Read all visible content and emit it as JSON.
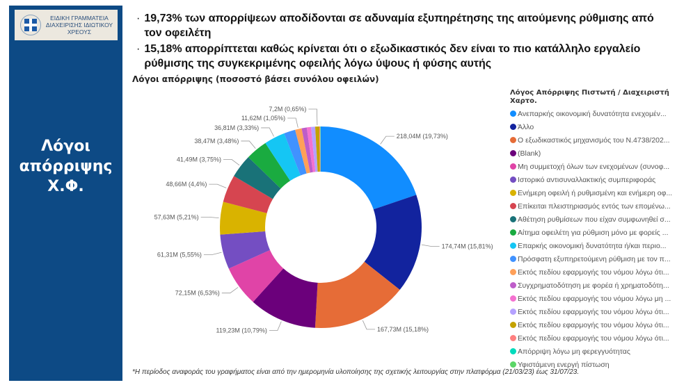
{
  "sidebar": {
    "logo_text": [
      "ΕΙΔΙΚΗ ΓΡΑΜΜΑΤΕΙΑ",
      "ΔΙΑΧΕΙΡΙΣΗΣ ΙΔΙΩΤΙΚΟΥ",
      "ΧΡΕΟΥΣ"
    ],
    "title": [
      "Λόγοι",
      "απόρριψης",
      "Χ.Φ."
    ],
    "background": "#0d4a85"
  },
  "bullets": [
    "19,73% των απορρίψεων αποδίδονται σε αδυναμία εξυπηρέτησης της αιτούμενης ρύθμισης από τον οφειλέτη",
    "15,18% απορρίπτεται καθώς κρίνεται ότι ο εξωδικαστικός δεν είναι το πιο κατάλληλο εργαλείο ρύθμισης της συγκεκριμένης οφειλής λόγω ύψους ή φύσης αυτής"
  ],
  "footnote": "*Η περίοδος αναφοράς του γραφήματος είναι από την ημερομηνία υλοποίησης της σχετικής λειτουργίας στην πλατφόρμα (21/03/23) έως 31/07/23.",
  "chart_data": {
    "type": "pie",
    "variant": "donut",
    "title": "Λόγοι απόρριψης (ποσοστό βάσει συνόλου οφειλών)",
    "legend_title": "Λόγος Απόρριψης Πιστωτή / Διαχειριστή Χαρτο.",
    "legend_position": "right",
    "slices": [
      {
        "name": "Ανεπαρκής οικονομική δυνατότητα ενεχομέν...",
        "value": 218.04,
        "label": "218,04M (19,73%)",
        "color": "#118dff"
      },
      {
        "name": "Άλλο",
        "value": 174.74,
        "label": "174,74M (15,81%)",
        "color": "#12239e"
      },
      {
        "name": "Ο εξωδικαστικός μηχανισμός του Ν.4738/202...",
        "value": 167.73,
        "label": "167,73M (15,18%)",
        "color": "#e66c37"
      },
      {
        "name": "(Blank)",
        "value": 119.23,
        "label": "119,23M (10,79%)",
        "color": "#6b007b"
      },
      {
        "name": "Μη συμμετοχή όλων των ενεχομένων (συνοφ...",
        "value": 72.15,
        "label": "72,15M (6,53%)",
        "color": "#e044a7"
      },
      {
        "name": "Ιστορικό αντισυναλλακτικής συμπεριφοράς",
        "value": 61.31,
        "label": "61,31M (5,55%)",
        "color": "#744ec2"
      },
      {
        "name": "Ενήμερη οφειλή ή ρυθμισμένη και ενήμερη οφ...",
        "value": 57.63,
        "label": "57,63M (5,21%)",
        "color": "#d9b300"
      },
      {
        "name": "Επίκειται πλειστηριασμός εντός των επομένω...",
        "value": 48.66,
        "label": "48,66M (4,4%)",
        "color": "#d64550"
      },
      {
        "name": "Αθέτηση ρυθμίσεων που είχαν συμφωνηθεί σ...",
        "value": 41.49,
        "label": "41,49M (3,75%)",
        "color": "#197278"
      },
      {
        "name": "Αίτημα οφειλέτη για ρύθμιση μόνο με φορείς ...",
        "value": 38.47,
        "label": "38,47M (3,48%)",
        "color": "#1aab40"
      },
      {
        "name": "Επαρκής οικονομική δυνατότητα ή/και περιο...",
        "value": 36.81,
        "label": "36,81M (3,33%)",
        "color": "#15c6f4"
      },
      {
        "name": "Πρόσφατη εξυπηρετούμενη ρύθμιση με τον π...",
        "value": 20,
        "color": "#4092ff"
      },
      {
        "name": "Εκτός πεδίου εφαρμογής του νόμου λόγω ότι...",
        "value": 11.62,
        "label": "11,62M (1,05%)",
        "color": "#ffa058"
      },
      {
        "name": "Συγχρηματοδότηση με φορέα ή χρηματοδότη...",
        "value": 9,
        "color": "#be5dc9"
      },
      {
        "name": "Εκτός πεδίου εφαρμογής του νόμου λόγω μη ...",
        "value": 7.5,
        "color": "#f472d0"
      },
      {
        "name": "Εκτός πεδίου εφαρμογής του νόμου λόγω ότι...",
        "value": 7.3,
        "color": "#b5a1ff"
      },
      {
        "name": "Εκτός πεδίου εφαρμογής του νόμου λόγω ότι...",
        "value": 7.2,
        "label": "7,2M (0,65%)",
        "color": "#c4a200"
      },
      {
        "name": "Εκτός πεδίου εφαρμογής του νόμου λόγω ότι...",
        "value": 1.5,
        "color": "#ff8080"
      },
      {
        "name": "Απόρριψη λόγω μη φερεγγυότητας",
        "value": 0.6,
        "color": "#00dbbc"
      },
      {
        "name": "Υφιστάμενη ενεργή πίστωση",
        "value": 0.4,
        "color": "#5bd667"
      }
    ]
  }
}
